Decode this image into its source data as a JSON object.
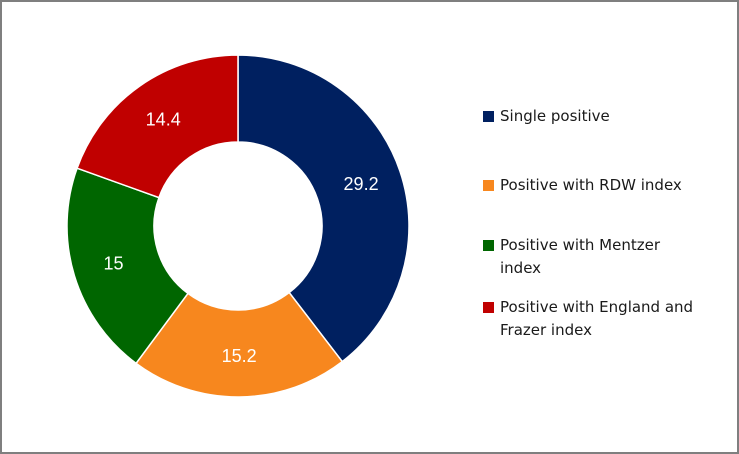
{
  "chart_data": {
    "type": "pie",
    "donut": true,
    "categories": [
      "Single positive",
      "Positive with RDW index",
      "Positive with Mentzer index",
      "Positive with England and Frazer index"
    ],
    "values": [
      29.2,
      15.2,
      15,
      14.4
    ],
    "value_labels": [
      "29.2",
      "15.2",
      "15",
      "14.4"
    ],
    "colors": [
      "#002060",
      "#f7871e",
      "#006600",
      "#c00000"
    ],
    "legend_position": "right",
    "title": ""
  },
  "legend": {
    "items": [
      {
        "label": "Single positive",
        "color": "#002060"
      },
      {
        "label": "Positive with RDW index",
        "color": "#f7871e"
      },
      {
        "label": "Positive with Mentzer index",
        "color": "#006600"
      },
      {
        "label": "Positive with England and Frazer index",
        "color": "#c00000"
      }
    ]
  }
}
